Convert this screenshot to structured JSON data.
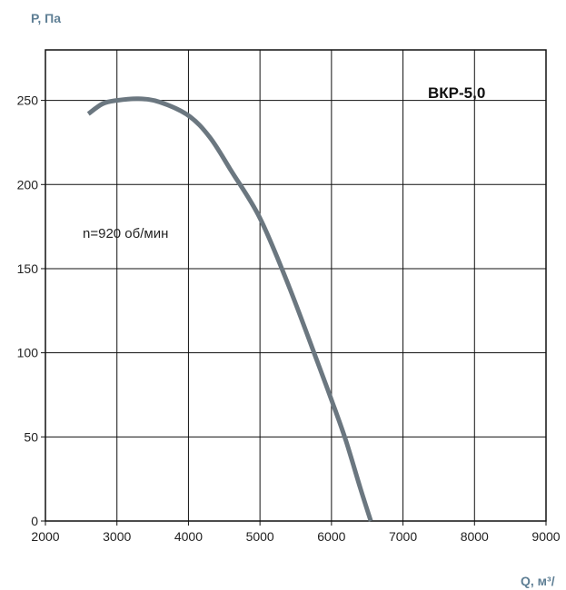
{
  "chart_data": {
    "type": "line",
    "title": "ВКР-5,0",
    "annotation": "n=920 об/мин",
    "ylabel": "Р, Па",
    "xlabel": "Q, м³/",
    "xlim": [
      2000,
      9000
    ],
    "ylim": [
      0,
      280
    ],
    "xticks": [
      2000,
      3000,
      4000,
      5000,
      6000,
      7000,
      8000,
      9000
    ],
    "yticks": [
      0,
      50,
      100,
      150,
      200,
      250
    ],
    "grid": true,
    "line_color": "#6b7780",
    "series": [
      {
        "x": [
          2600,
          2800,
          3000,
          3300,
          3600,
          4000,
          4300,
          4600,
          5000,
          5400,
          5800,
          6000,
          6200,
          6400,
          6550
        ],
        "y": [
          242,
          248,
          250,
          251,
          249,
          241,
          228,
          208,
          180,
          140,
          95,
          72,
          48,
          20,
          0
        ]
      }
    ]
  }
}
